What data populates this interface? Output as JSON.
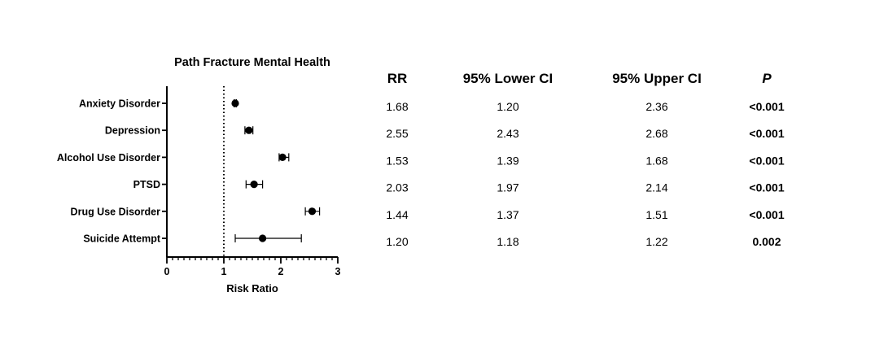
{
  "chart_data": {
    "type": "forest",
    "title": "Path Fracture Mental Health",
    "xlabel": "Risk Ratio",
    "xlim": [
      0,
      3
    ],
    "x_ticks": [
      0,
      1,
      2,
      3
    ],
    "x_tick_labels": [
      "0",
      "1",
      "2",
      "3"
    ],
    "reference_line": 1,
    "categories": [
      "Anxiety Disorder",
      "Depression",
      "Alcohol Use Disorder",
      "PTSD",
      "Drug Use Disorder",
      "Suicide Attempt"
    ],
    "points": [
      {
        "label": "Anxiety Disorder",
        "rr": 1.2,
        "lower": 1.18,
        "upper": 1.22
      },
      {
        "label": "Depression",
        "rr": 1.44,
        "lower": 1.37,
        "upper": 1.51
      },
      {
        "label": "Alcohol Use Disorder",
        "rr": 2.03,
        "lower": 1.97,
        "upper": 2.14
      },
      {
        "label": "PTSD",
        "rr": 1.53,
        "lower": 1.39,
        "upper": 1.68
      },
      {
        "label": "Drug Use Disorder",
        "rr": 2.55,
        "lower": 2.43,
        "upper": 2.68
      },
      {
        "label": "Suicide Attempt",
        "rr": 1.68,
        "lower": 1.2,
        "upper": 2.36
      }
    ],
    "grid": false
  },
  "table": {
    "headers": [
      "RR",
      "95% Lower CI",
      "95% Upper CI",
      "P"
    ],
    "rows": [
      [
        "1.68",
        "1.20",
        "2.36",
        "<0.001"
      ],
      [
        "2.55",
        "2.43",
        "2.68",
        "<0.001"
      ],
      [
        "1.53",
        "1.39",
        "1.68",
        "<0.001"
      ],
      [
        "2.03",
        "1.97",
        "2.14",
        "<0.001"
      ],
      [
        "1.44",
        "1.37",
        "1.51",
        "<0.001"
      ],
      [
        "1.20",
        "1.18",
        "1.22",
        "0.002"
      ]
    ]
  }
}
